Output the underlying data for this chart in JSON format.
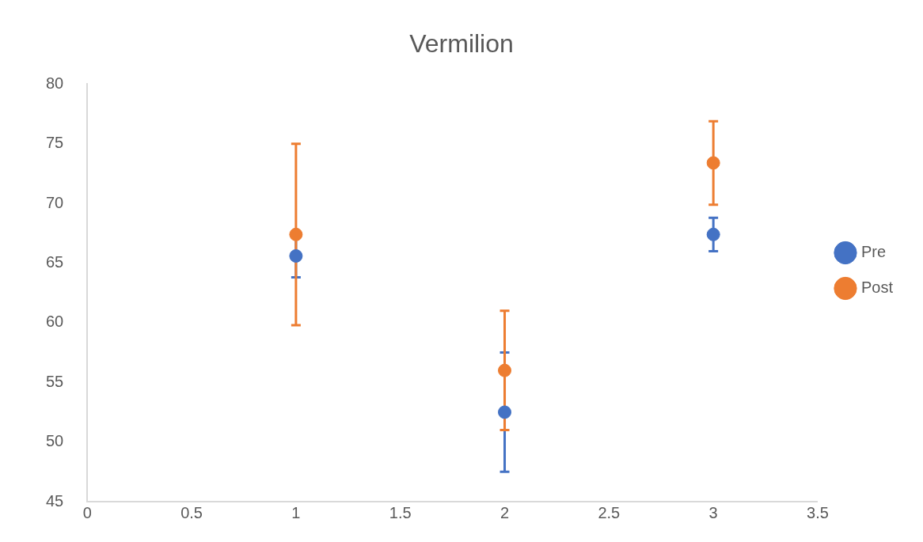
{
  "chart_data": {
    "type": "scatter",
    "title": "Vermilion",
    "x": [
      1,
      2,
      3
    ],
    "xlim": [
      0,
      3.5
    ],
    "xticks": [
      0,
      0.5,
      1,
      1.5,
      2,
      2.5,
      3,
      3.5
    ],
    "ylim": [
      45,
      80
    ],
    "yticks": [
      45,
      50,
      55,
      60,
      65,
      70,
      75,
      80
    ],
    "grid": false,
    "legend": "right",
    "marker": "circle",
    "series": [
      {
        "name": "Pre",
        "color": "#4472c4",
        "values": [
          65.6,
          52.5,
          67.4
        ],
        "errors": [
          1.8,
          5,
          1.4
        ]
      },
      {
        "name": "Post",
        "color": "#ed7d31",
        "values": [
          67.4,
          56,
          73.4
        ],
        "errors": [
          7.6,
          5,
          3.5
        ]
      }
    ]
  }
}
